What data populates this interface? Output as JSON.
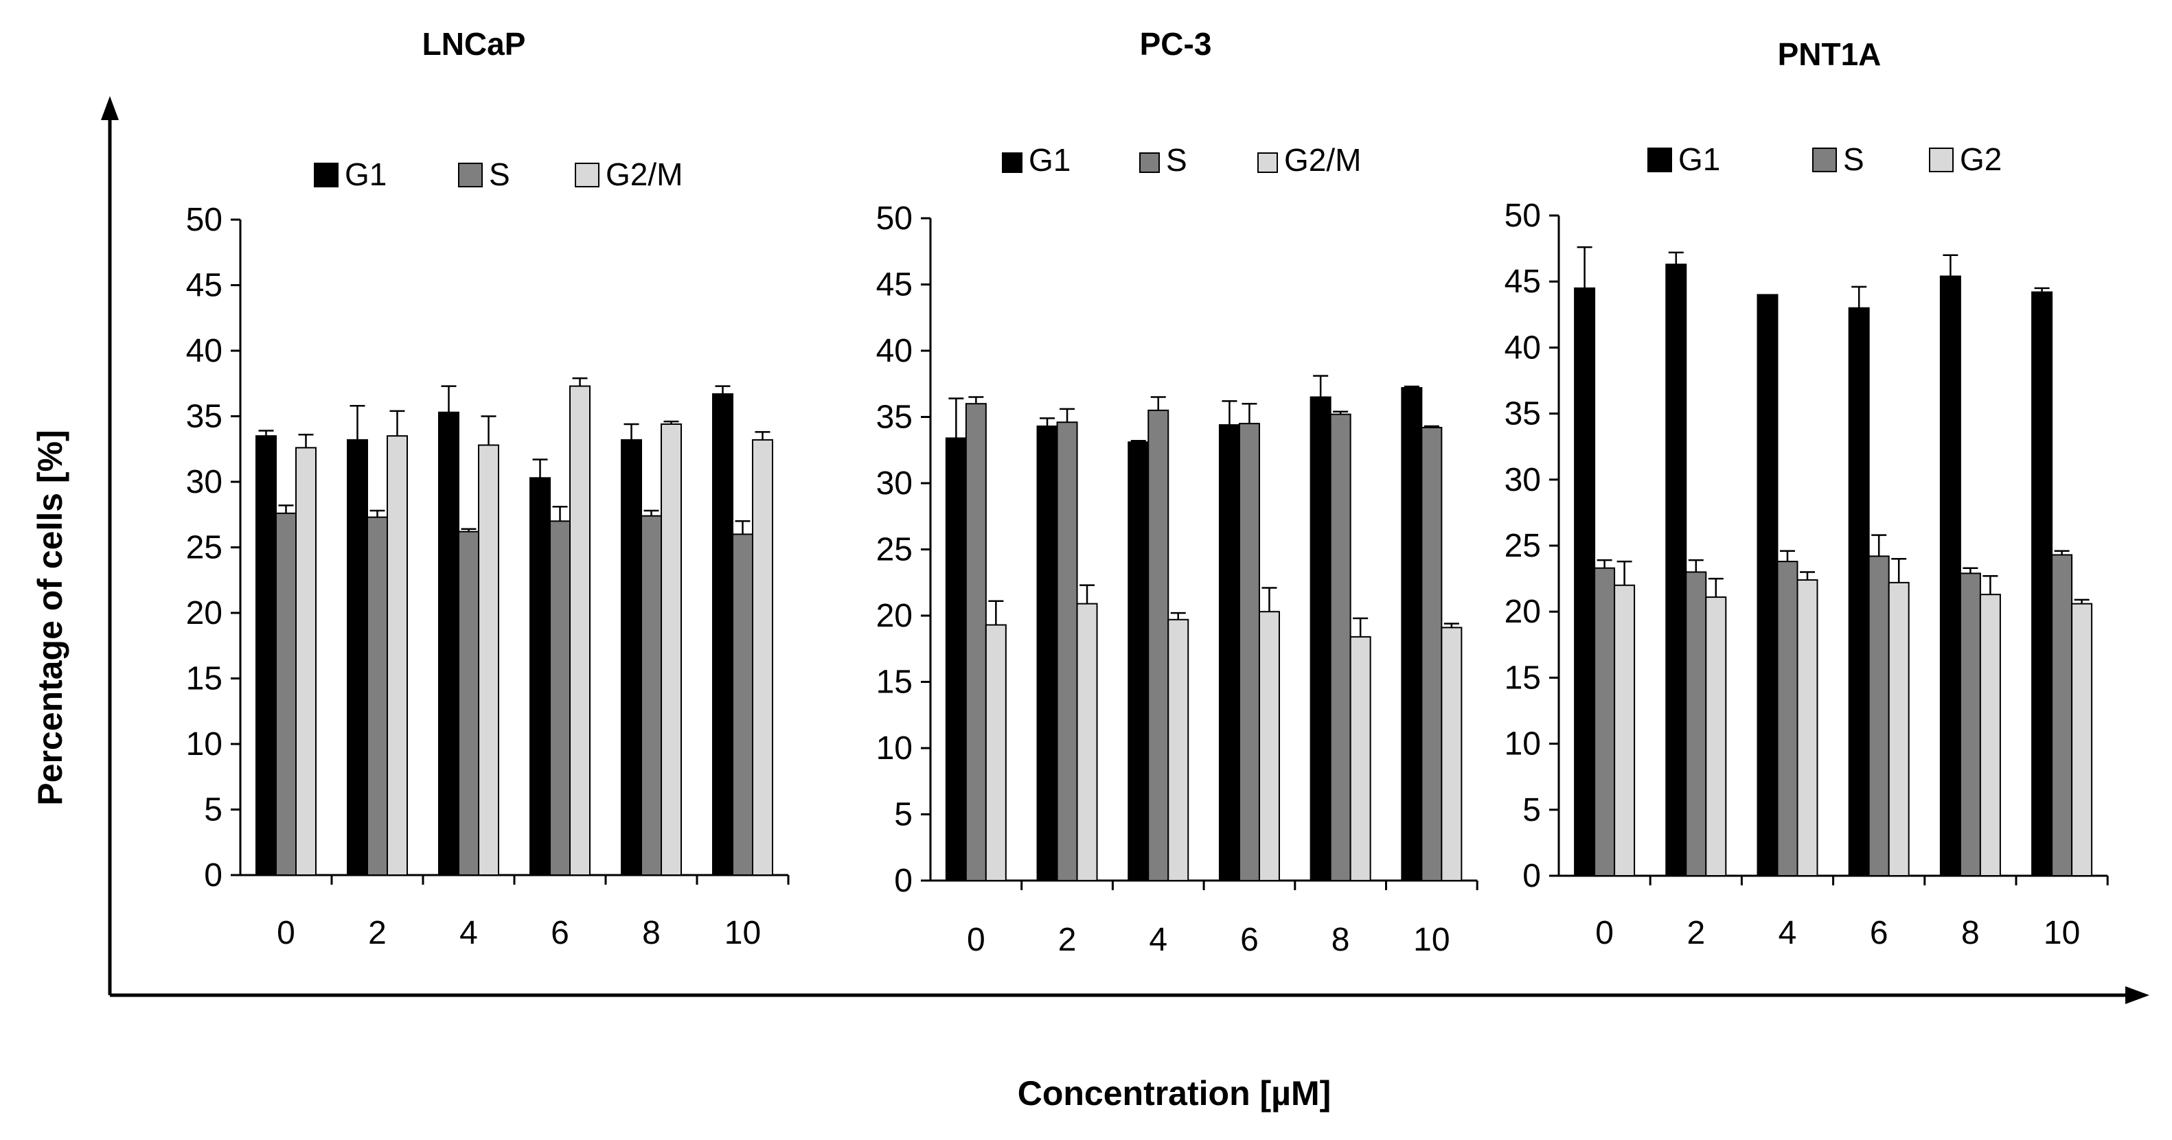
{
  "figure": {
    "ylabel": "Percentage of cells  [%]",
    "xlabel": "Concentration [µM]"
  },
  "chart_data": [
    {
      "type": "bar",
      "title": "LNCaP",
      "categories": [
        "0",
        "2",
        "4",
        "6",
        "8",
        "10"
      ],
      "ylim": [
        0,
        50
      ],
      "yticks": [
        "0",
        "5",
        "10",
        "15",
        "20",
        "25",
        "30",
        "35",
        "40",
        "45",
        "50"
      ],
      "legend_position": "top",
      "series": [
        {
          "name": "G1",
          "color": "#000000",
          "values": [
            33.5,
            33.2,
            35.3,
            30.3,
            33.2,
            36.7
          ],
          "errors": [
            0.4,
            2.6,
            2.0,
            1.4,
            1.2,
            0.6
          ]
        },
        {
          "name": "S",
          "color": "#7f7f7f",
          "values": [
            27.6,
            27.3,
            26.2,
            27.0,
            27.4,
            26.0
          ],
          "errors": [
            0.6,
            0.5,
            0.2,
            1.1,
            0.4,
            1.0
          ]
        },
        {
          "name": "G2/M",
          "color": "#d9d9d9",
          "values": [
            32.6,
            33.5,
            32.8,
            37.3,
            34.4,
            33.2
          ],
          "errors": [
            1.0,
            1.9,
            2.2,
            0.6,
            0.2,
            0.6
          ]
        }
      ]
    },
    {
      "type": "bar",
      "title": "PC-3",
      "categories": [
        "0",
        "2",
        "4",
        "6",
        "8",
        "10"
      ],
      "ylim": [
        0,
        50
      ],
      "yticks": [
        "0",
        "5",
        "10",
        "15",
        "20",
        "25",
        "30",
        "35",
        "40",
        "45",
        "50"
      ],
      "legend_position": "top",
      "series": [
        {
          "name": "G1",
          "color": "#000000",
          "values": [
            33.4,
            34.3,
            33.1,
            34.4,
            36.5,
            37.2
          ],
          "errors": [
            3.0,
            0.6,
            0.1,
            1.8,
            1.6,
            0.1
          ]
        },
        {
          "name": "S",
          "color": "#7f7f7f",
          "values": [
            36.0,
            34.6,
            35.5,
            34.5,
            35.2,
            34.2
          ],
          "errors": [
            0.5,
            1.0,
            1.0,
            1.5,
            0.2,
            0.1
          ]
        },
        {
          "name": "G2/M",
          "color": "#d9d9d9",
          "values": [
            19.3,
            20.9,
            19.7,
            20.3,
            18.4,
            19.1
          ],
          "errors": [
            1.8,
            1.4,
            0.5,
            1.8,
            1.4,
            0.3
          ]
        }
      ]
    },
    {
      "type": "bar",
      "title": "PNT1A",
      "categories": [
        "0",
        "2",
        "4",
        "6",
        "8",
        "10"
      ],
      "ylim": [
        0,
        50
      ],
      "yticks": [
        "0",
        "5",
        "10",
        "15",
        "20",
        "25",
        "30",
        "35",
        "40",
        "45",
        "50"
      ],
      "legend_position": "top",
      "series": [
        {
          "name": "G1",
          "color": "#000000",
          "values": [
            44.5,
            46.3,
            44.0,
            43.0,
            45.4,
            44.2
          ],
          "errors": [
            3.1,
            0.9,
            0.0,
            1.6,
            1.6,
            0.3
          ]
        },
        {
          "name": "S",
          "color": "#7f7f7f",
          "values": [
            23.3,
            23.0,
            23.8,
            24.2,
            22.9,
            24.3
          ],
          "errors": [
            0.6,
            0.9,
            0.8,
            1.6,
            0.4,
            0.3
          ]
        },
        {
          "name": "G2",
          "color": "#d9d9d9",
          "values": [
            22.0,
            21.1,
            22.4,
            22.2,
            21.3,
            20.6
          ],
          "errors": [
            1.8,
            1.4,
            0.6,
            1.8,
            1.4,
            0.3
          ]
        }
      ]
    }
  ]
}
